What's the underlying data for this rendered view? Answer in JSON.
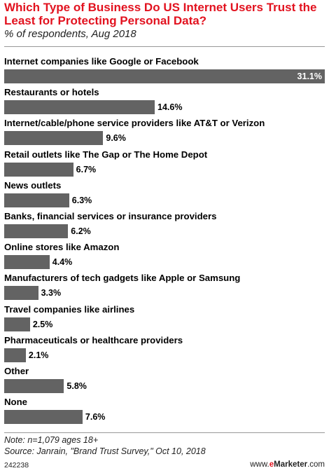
{
  "header": {
    "title": "Which Type of Business Do US Internet Users Trust the Least for Protecting Personal Data?",
    "subtitle": "% of respondents, Aug 2018"
  },
  "chart_data": {
    "type": "bar",
    "orientation": "horizontal",
    "title": "Which Type of Business Do US Internet Users Trust the Least for Protecting Personal Data?",
    "subtitle": "% of respondents, Aug 2018",
    "categories": [
      "Internet companies like Google or Facebook",
      "Restaurants or hotels",
      "Internet/cable/phone service providers like AT&T or Verizon",
      "Retail outlets like The Gap or The Home Depot",
      "News outlets",
      "Banks, financial services or insurance providers",
      "Online stores like Amazon",
      "Manufacturers of tech gadgets like Apple or Samsung",
      "Travel companies like airlines",
      "Pharmaceuticals or healthcare providers",
      "Other",
      "None"
    ],
    "values": [
      31.1,
      14.6,
      9.6,
      6.7,
      6.3,
      6.2,
      4.4,
      3.3,
      2.5,
      2.1,
      5.8,
      7.6
    ],
    "value_labels": [
      "31.1%",
      "14.6%",
      "9.6%",
      "6.7%",
      "6.3%",
      "6.2%",
      "4.4%",
      "3.3%",
      "2.5%",
      "2.1%",
      "5.8%",
      "7.6%"
    ],
    "unit": "%",
    "bar_color": "#636363",
    "grid": false
  },
  "footer": {
    "note": "Note: n=1,079 ages 18+",
    "source": "Source: Janrain, \"Brand Trust Survey,\" Oct 10, 2018",
    "chart_id": "242238",
    "brand_prefix": "www.",
    "brand_e": "e",
    "brand_name": "Marketer",
    "brand_suffix": ".com"
  },
  "colors": {
    "title": "#e2121f",
    "bar": "#636363",
    "brand_accent": "#e2121f"
  }
}
